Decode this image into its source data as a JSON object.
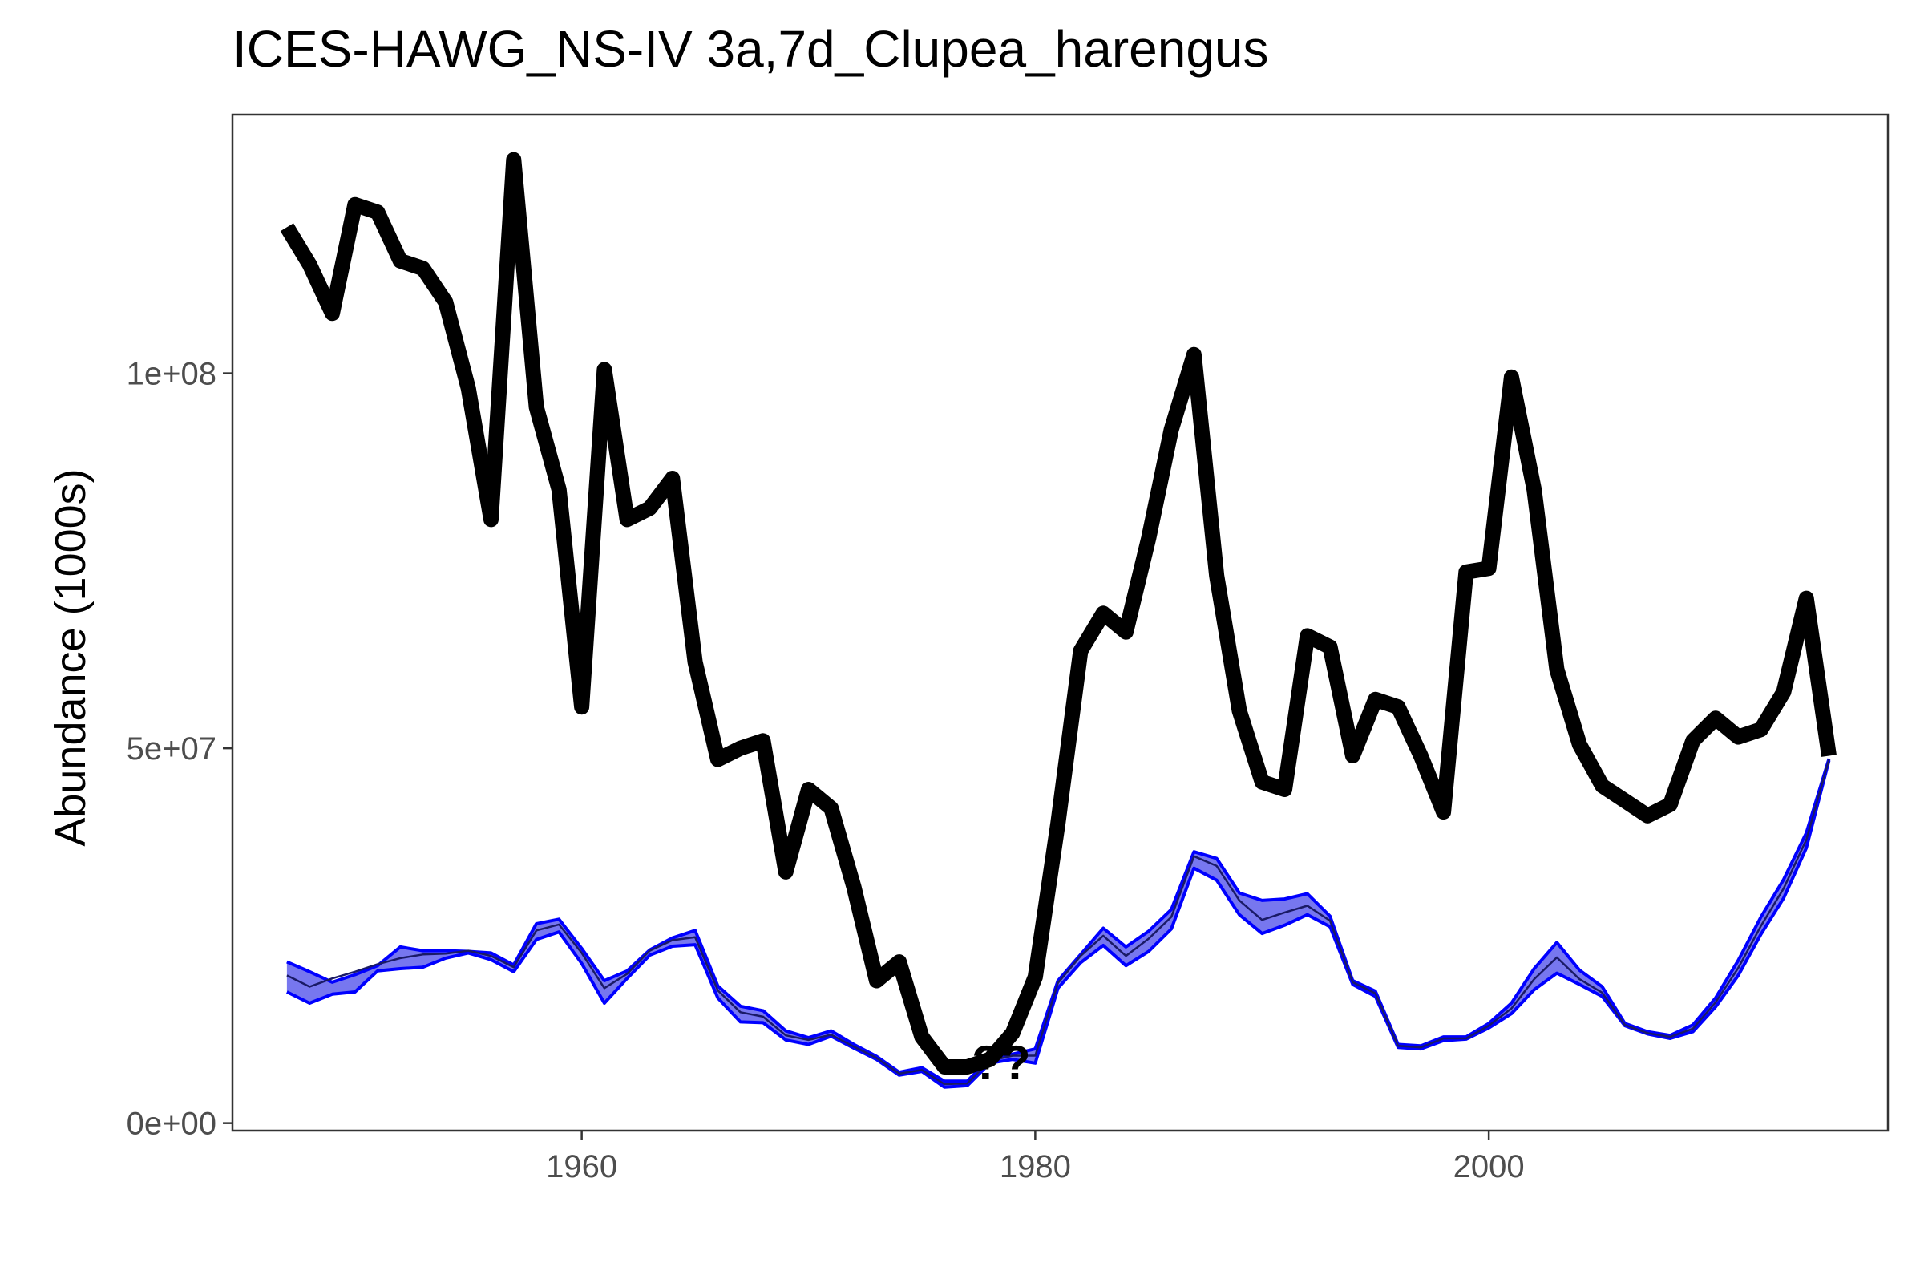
{
  "chart_data": {
    "type": "line",
    "title": "ICES-HAWG_NS-IV 3a,7d_Clupea_harengus",
    "xlabel": "",
    "ylabel": "Abundance (1000s)",
    "xlim": [
      1944.6,
      2017.6
    ],
    "ylim": [
      -1000000,
      134500000
    ],
    "x_ticks": [
      1960,
      1980,
      2000
    ],
    "x_tick_labels": [
      "1960",
      "1980",
      "2000"
    ],
    "y_ticks": [
      0,
      50000000,
      100000000
    ],
    "y_tick_labels": [
      "0e+00",
      "5e+07",
      "1e+08"
    ],
    "grid": false,
    "legend": "none",
    "annotation": {
      "text": "??",
      "x": 1978.5,
      "y": 8000000
    },
    "x": [
      1947,
      1948,
      1949,
      1950,
      1951,
      1952,
      1953,
      1954,
      1955,
      1956,
      1957,
      1958,
      1959,
      1960,
      1961,
      1962,
      1963,
      1964,
      1965,
      1966,
      1967,
      1968,
      1969,
      1970,
      1971,
      1972,
      1973,
      1974,
      1975,
      1976,
      1977,
      1978,
      1979,
      1980,
      1981,
      1982,
      1983,
      1984,
      1985,
      1986,
      1987,
      1988,
      1989,
      1990,
      1991,
      1992,
      1993,
      1994,
      1995,
      1996,
      1997,
      1998,
      1999,
      2000,
      2001,
      2002,
      2003,
      2004,
      2005,
      2006,
      2007,
      2008,
      2009,
      2010,
      2011,
      2012,
      2013,
      2014,
      2015
    ],
    "series": [
      {
        "kind": "line",
        "color": "#000000",
        "values": [
          119500000,
          114500000,
          108000000,
          122500000,
          121500000,
          115000000,
          114000000,
          109500000,
          98000000,
          80500000,
          128500000,
          95500000,
          84500000,
          55500000,
          100500000,
          80500000,
          82000000,
          86000000,
          61500000,
          48500000,
          50000000,
          51000000,
          33500000,
          44500000,
          42000000,
          31500000,
          19000000,
          21500000,
          11500000,
          7500000,
          7500000,
          8500000,
          12000000,
          19500000,
          40000000,
          63000000,
          68000000,
          65500000,
          78000000,
          92500000,
          102500000,
          73000000,
          55000000,
          45500000,
          44500000,
          65000000,
          63500000,
          49000000,
          56500000,
          55500000,
          49000000,
          41500000,
          73500000,
          74000000,
          99500000,
          84500000,
          60500000,
          50500000,
          45000000,
          43000000,
          41000000,
          42500000,
          51000000,
          54000000,
          51500000,
          52500000,
          57500000,
          70000000,
          49000000
        ]
      },
      {
        "kind": "ribbon",
        "color": "#0000ff",
        "fill": "#7070ee",
        "mid": [
          19700000,
          18200000,
          19300000,
          20200000,
          21200000,
          22000000,
          22500000,
          22600000,
          23000000,
          22300000,
          20800000,
          25700000,
          26500000,
          22700000,
          18000000,
          19900000,
          23000000,
          24400000,
          24800000,
          17700000,
          14800000,
          14200000,
          11700000,
          11100000,
          11800000,
          10200000,
          8700000,
          6600000,
          7100000,
          5200000,
          5300000,
          8300000,
          9000000,
          9000000,
          18700000,
          22300000,
          25000000,
          22300000,
          24600000,
          27500000,
          35600000,
          34300000,
          29700000,
          27100000,
          28100000,
          29000000,
          27000000,
          18800000,
          17300000,
          10300000,
          10100000,
          11300000,
          11300000,
          13000000,
          15300000,
          19200000,
          22100000,
          19200000,
          17400000,
          13100000,
          12000000,
          11500000,
          12600000,
          16100000,
          20700000,
          26300000,
          31300000,
          37800000,
          48500000
        ],
        "low": [
          17500000,
          16000000,
          17200000,
          17500000,
          20300000,
          20600000,
          20800000,
          22000000,
          22700000,
          21800000,
          20200000,
          24500000,
          25500000,
          21300000,
          16000000,
          19300000,
          22400000,
          23600000,
          23800000,
          16700000,
          13500000,
          13400000,
          11100000,
          10500000,
          11600000,
          10000000,
          8500000,
          6400000,
          6900000,
          4800000,
          5000000,
          8000000,
          8500000,
          8000000,
          18000000,
          21400000,
          23700000,
          21000000,
          22900000,
          25900000,
          34000000,
          32400000,
          27800000,
          25300000,
          26400000,
          27800000,
          26200000,
          18500000,
          16900000,
          10100000,
          9900000,
          11000000,
          11200000,
          12700000,
          14600000,
          17800000,
          20000000,
          18500000,
          16900000,
          13000000,
          11900000,
          11300000,
          12200000,
          15500000,
          19700000,
          25200000,
          30000000,
          36700000,
          48400000
        ],
        "high": [
          21500000,
          20200000,
          18800000,
          19800000,
          21000000,
          23500000,
          23000000,
          23000000,
          22900000,
          22700000,
          21100000,
          26600000,
          27200000,
          23300000,
          19000000,
          20300000,
          23100000,
          24700000,
          25700000,
          18300000,
          15600000,
          15000000,
          12300000,
          11400000,
          12300000,
          10500000,
          8900000,
          6800000,
          7400000,
          5600000,
          5600000,
          8600000,
          9200000,
          9900000,
          19000000,
          22500000,
          26000000,
          23500000,
          25600000,
          28500000,
          36200000,
          35300000,
          30700000,
          29700000,
          29900000,
          30600000,
          27600000,
          19000000,
          17600000,
          10500000,
          10300000,
          11500000,
          11500000,
          13300000,
          16000000,
          20600000,
          24100000,
          20400000,
          18200000,
          13300000,
          12200000,
          11700000,
          13100000,
          16700000,
          21700000,
          27500000,
          32500000,
          38700000,
          48600000
        ]
      }
    ]
  }
}
